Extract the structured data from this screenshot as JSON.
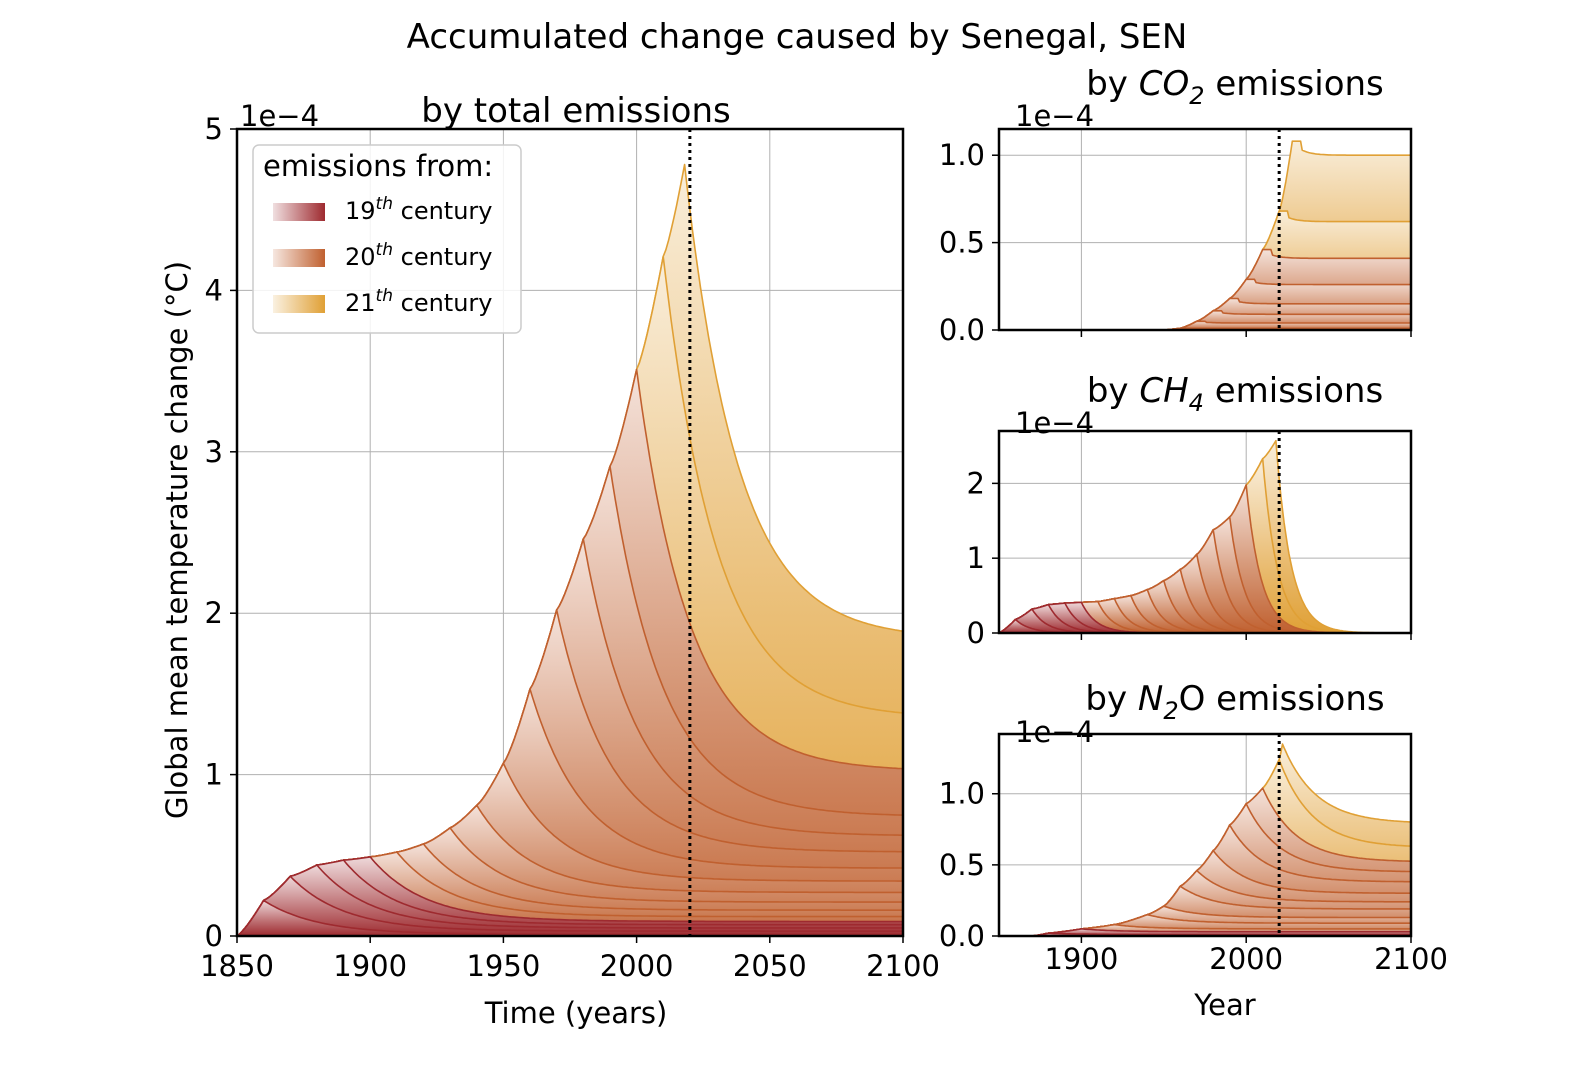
{
  "figure": {
    "suptitle": "Accumulated change caused by Senegal, SEN",
    "colors": {
      "c19": "#9e2a2f",
      "c20": "#c0602f",
      "c21": "#e0a035",
      "grid": "#b0b0b0",
      "vline": "#000000"
    }
  },
  "legend": {
    "title": "emissions from:",
    "items": [
      {
        "label_main": "19",
        "label_sup": "th",
        "label_rest": " century"
      },
      {
        "label_main": "20",
        "label_sup": "th",
        "label_rest": " century"
      },
      {
        "label_main": "21",
        "label_sup": "th",
        "label_rest": " century"
      }
    ]
  },
  "chart_data": [
    {
      "panel": "main",
      "type": "area",
      "title": "by total emissions",
      "xlabel": "Time (years)",
      "ylabel": "Global mean temperature change (°C)",
      "y_multiplier": "1e−4",
      "xlim": [
        1850,
        2100
      ],
      "ylim": [
        0,
        5
      ],
      "xticks": [
        1850,
        1900,
        1950,
        2000,
        2050,
        2100
      ],
      "yticks": [
        0,
        1,
        2,
        3,
        4,
        5
      ],
      "ytick_labels": [
        "0",
        "1",
        "2",
        "3",
        "4",
        "5"
      ],
      "vline_x": 2020,
      "grid": true,
      "legend_position": "upper-left",
      "stacked": true,
      "peaks": [
        {
          "x": 1860,
          "y": 0.22,
          "century": 19
        },
        {
          "x": 1870,
          "y": 0.37,
          "century": 19
        },
        {
          "x": 1880,
          "y": 0.44,
          "century": 19
        },
        {
          "x": 1890,
          "y": 0.47,
          "century": 19
        },
        {
          "x": 1900,
          "y": 0.49,
          "century": 19
        },
        {
          "x": 1910,
          "y": 0.52,
          "century": 20
        },
        {
          "x": 1920,
          "y": 0.57,
          "century": 20
        },
        {
          "x": 1930,
          "y": 0.67,
          "century": 20
        },
        {
          "x": 1940,
          "y": 0.81,
          "century": 20
        },
        {
          "x": 1950,
          "y": 1.07,
          "century": 20
        },
        {
          "x": 1960,
          "y": 1.53,
          "century": 20
        },
        {
          "x": 1970,
          "y": 2.02,
          "century": 20
        },
        {
          "x": 1980,
          "y": 2.46,
          "century": 20
        },
        {
          "x": 1990,
          "y": 2.91,
          "century": 20
        },
        {
          "x": 2000,
          "y": 3.51,
          "century": 20
        },
        {
          "x": 2010,
          "y": 4.21,
          "century": 21
        },
        {
          "x": 2018,
          "y": 4.78,
          "century": 21
        }
      ],
      "end_values": [
        0.01,
        0.03,
        0.05,
        0.07,
        0.09,
        0.12,
        0.16,
        0.21,
        0.27,
        0.34,
        0.42,
        0.52,
        0.62,
        0.74,
        1.02,
        1.35,
        1.84
      ]
    },
    {
      "panel": "co2",
      "type": "area",
      "title_prefix": "by ",
      "title_species": "CO",
      "title_sub": "2",
      "title_suffix": " emissions",
      "y_multiplier": "1e−4",
      "xlim": [
        1850,
        2100
      ],
      "ylim": [
        0,
        1.15
      ],
      "xticks": [
        1900,
        2000,
        2100
      ],
      "yticks": [
        0,
        0.5,
        1.0
      ],
      "ytick_labels": [
        "0.0",
        "0.5",
        "1.0"
      ],
      "vline_x": 2020,
      "grid": true,
      "stacked": true,
      "peaks": [
        {
          "x": 1960,
          "y": 0.01,
          "century": 20
        },
        {
          "x": 1970,
          "y": 0.05,
          "century": 20
        },
        {
          "x": 1980,
          "y": 0.11,
          "century": 20
        },
        {
          "x": 1990,
          "y": 0.18,
          "century": 20
        },
        {
          "x": 2000,
          "y": 0.29,
          "century": 20
        },
        {
          "x": 2010,
          "y": 0.46,
          "century": 20
        },
        {
          "x": 2020,
          "y": 0.68,
          "century": 21
        },
        {
          "x": 2028,
          "y": 1.08,
          "century": 21
        }
      ],
      "end_values": [
        0.01,
        0.04,
        0.09,
        0.15,
        0.26,
        0.41,
        0.62,
        1.0
      ]
    },
    {
      "panel": "ch4",
      "type": "area",
      "title_prefix": "by ",
      "title_species": "CH",
      "title_sub": "4",
      "title_suffix": " emissions",
      "y_multiplier": "1e−4",
      "xlim": [
        1850,
        2100
      ],
      "ylim": [
        0,
        2.7
      ],
      "xticks": [
        1900,
        2000,
        2100
      ],
      "yticks": [
        0,
        1,
        2
      ],
      "ytick_labels": [
        "0",
        "1",
        "2"
      ],
      "vline_x": 2020,
      "grid": true,
      "stacked": true,
      "peaks": [
        {
          "x": 1860,
          "y": 0.18,
          "century": 19
        },
        {
          "x": 1870,
          "y": 0.32,
          "century": 19
        },
        {
          "x": 1880,
          "y": 0.38,
          "century": 19
        },
        {
          "x": 1890,
          "y": 0.4,
          "century": 19
        },
        {
          "x": 1900,
          "y": 0.41,
          "century": 19
        },
        {
          "x": 1910,
          "y": 0.42,
          "century": 20
        },
        {
          "x": 1920,
          "y": 0.46,
          "century": 20
        },
        {
          "x": 1930,
          "y": 0.5,
          "century": 20
        },
        {
          "x": 1940,
          "y": 0.58,
          "century": 20
        },
        {
          "x": 1950,
          "y": 0.7,
          "century": 20
        },
        {
          "x": 1960,
          "y": 0.85,
          "century": 20
        },
        {
          "x": 1970,
          "y": 1.05,
          "century": 20
        },
        {
          "x": 1980,
          "y": 1.38,
          "century": 20
        },
        {
          "x": 1990,
          "y": 1.55,
          "century": 20
        },
        {
          "x": 2000,
          "y": 1.98,
          "century": 20
        },
        {
          "x": 2010,
          "y": 2.33,
          "century": 21
        },
        {
          "x": 2018,
          "y": 2.57,
          "century": 21
        }
      ],
      "end_values": [
        0,
        0,
        0,
        0,
        0,
        0,
        0,
        0,
        0,
        0,
        0,
        0,
        0,
        0,
        0,
        0,
        0
      ]
    },
    {
      "panel": "n2o",
      "type": "area",
      "title_prefix": "by ",
      "title_species": "N",
      "title_sub": "2",
      "title_suffix": "O emissions",
      "xlabel": "Year",
      "y_multiplier": "1e−4",
      "xlim": [
        1850,
        2100
      ],
      "ylim": [
        0,
        1.42
      ],
      "xticks": [
        1900,
        2000,
        2100
      ],
      "yticks": [
        0,
        0.5,
        1.0
      ],
      "ytick_labels": [
        "0.0",
        "0.5",
        "1.0"
      ],
      "vline_x": 2020,
      "grid": true,
      "stacked": true,
      "peaks": [
        {
          "x": 1880,
          "y": 0.02,
          "century": 19
        },
        {
          "x": 1900,
          "y": 0.05,
          "century": 19
        },
        {
          "x": 1920,
          "y": 0.08,
          "century": 20
        },
        {
          "x": 1940,
          "y": 0.15,
          "century": 20
        },
        {
          "x": 1950,
          "y": 0.21,
          "century": 20
        },
        {
          "x": 1960,
          "y": 0.35,
          "century": 20
        },
        {
          "x": 1970,
          "y": 0.46,
          "century": 20
        },
        {
          "x": 1980,
          "y": 0.6,
          "century": 20
        },
        {
          "x": 1990,
          "y": 0.78,
          "century": 20
        },
        {
          "x": 2000,
          "y": 0.93,
          "century": 20
        },
        {
          "x": 2010,
          "y": 1.04,
          "century": 20
        },
        {
          "x": 2020,
          "y": 1.24,
          "century": 21
        },
        {
          "x": 2022,
          "y": 1.35,
          "century": 21
        }
      ],
      "end_values": [
        0.01,
        0.03,
        0.05,
        0.09,
        0.13,
        0.19,
        0.24,
        0.3,
        0.38,
        0.45,
        0.52,
        0.62,
        0.79
      ]
    }
  ]
}
